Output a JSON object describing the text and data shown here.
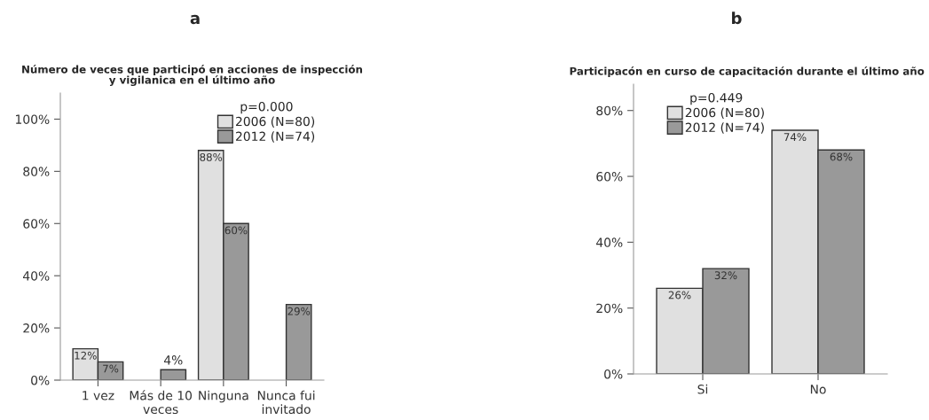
{
  "chart_data": [
    {
      "type": "bar",
      "title": "a",
      "subtitle": "Número de veces que participó en acciones de inspección\ny vigilanica en el último año",
      "legend_title": "p=0.000",
      "legend": "top right",
      "grid": false,
      "categories": [
        "1 vez",
        "Más de 10\nveces",
        "Ninguna",
        "Nunca fui\ninvitado"
      ],
      "series": [
        {
          "name": "2006 (N=80)",
          "color": "#e0e0e0",
          "values": [
            12,
            null,
            88,
            null
          ],
          "value_labels": [
            "12%",
            null,
            "88%",
            null
          ]
        },
        {
          "name": "2012 (N=74)",
          "color": "#999999",
          "values": [
            7,
            4,
            60,
            29
          ],
          "value_labels": [
            "7%",
            "4%",
            "60%",
            "29%"
          ]
        }
      ],
      "ylim": [
        0,
        110
      ],
      "yticks": [
        {
          "value": 0,
          "label": "0%"
        },
        {
          "value": 20,
          "label": "20%"
        },
        {
          "value": 40,
          "label": "40%"
        },
        {
          "value": 60,
          "label": "60%"
        },
        {
          "value": 80,
          "label": "80%"
        },
        {
          "value": 100,
          "label": "100%"
        }
      ]
    },
    {
      "type": "bar",
      "title": "b",
      "subtitle": "Participacón en curso de capacitación durante el último año",
      "legend_title": "p=0.449",
      "legend": "top left",
      "grid": false,
      "categories": [
        "Si",
        "No"
      ],
      "series": [
        {
          "name": "2006 (N=80)",
          "color": "#e0e0e0",
          "values": [
            26,
            74
          ],
          "value_labels": [
            "26%",
            "74%"
          ]
        },
        {
          "name": "2012 (N=74)",
          "color": "#999999",
          "values": [
            32,
            68
          ],
          "value_labels": [
            "32%",
            "68%"
          ]
        }
      ],
      "ylim": [
        0,
        88
      ],
      "yticks": [
        {
          "value": 0,
          "label": "0%"
        },
        {
          "value": 20,
          "label": "20%"
        },
        {
          "value": 40,
          "label": "40%"
        },
        {
          "value": 60,
          "label": "60%"
        },
        {
          "value": 80,
          "label": "80%"
        }
      ]
    }
  ]
}
